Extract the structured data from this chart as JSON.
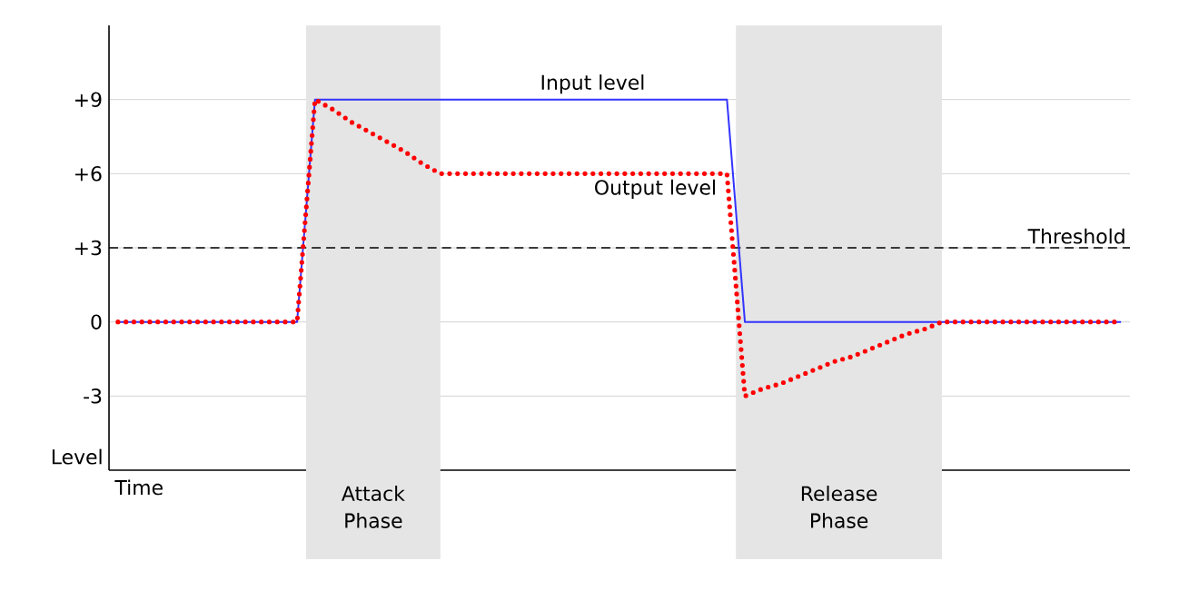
{
  "chart_data": {
    "type": "line",
    "xlabel": "Time",
    "ylabel": "Level",
    "categories": [
      null,
      null,
      null,
      null,
      null,
      null,
      null,
      null,
      null,
      null,
      null,
      null,
      null,
      null,
      null,
      null,
      null,
      null,
      null,
      null,
      null,
      null,
      null,
      null,
      null,
      null,
      null,
      null,
      null,
      null,
      null,
      null,
      null,
      null,
      null,
      null,
      null,
      null,
      null,
      null,
      null,
      null,
      null,
      null,
      null,
      null,
      null,
      null,
      null,
      null,
      null,
      null,
      null,
      null,
      null,
      null,
      null
    ],
    "ylim": [
      -6,
      12
    ],
    "yticks": [
      {
        "value": 9,
        "label": "+9"
      },
      {
        "value": 6,
        "label": "+6"
      },
      {
        "value": 3,
        "label": "+3"
      },
      {
        "value": 0,
        "label": "0"
      },
      {
        "value": -3,
        "label": "-3"
      }
    ],
    "tick_labels": "y",
    "grid": "y",
    "legend": false,
    "series": [
      {
        "name": "Input level",
        "color": "#3333ff",
        "line_style": "solid",
        "values": [
          0,
          0,
          0,
          0,
          0,
          0,
          0,
          0,
          0,
          0,
          0,
          9,
          9,
          9,
          9,
          9,
          9,
          9,
          9,
          9,
          9,
          9,
          9,
          9,
          9,
          9,
          9,
          9,
          9,
          9,
          9,
          9,
          9,
          9,
          9,
          0,
          0,
          0,
          0,
          0,
          0,
          0,
          0,
          0,
          0,
          0,
          0,
          0,
          0,
          0,
          0,
          0,
          0,
          0,
          0,
          0,
          0
        ]
      },
      {
        "name": "Output level",
        "color": "#ff0000",
        "line_style": "dotted",
        "values": [
          0,
          0,
          0,
          0,
          0,
          0,
          0,
          0,
          0,
          0,
          0,
          9,
          8.6,
          8.1,
          7.7,
          7.3,
          6.9,
          6.4,
          6,
          6,
          6,
          6,
          6,
          6,
          6,
          6,
          6,
          6,
          6,
          6,
          6,
          6,
          6,
          6,
          6,
          -3,
          -2.7,
          -2.5,
          -2.2,
          -1.9,
          -1.6,
          -1.4,
          -1.1,
          -0.8,
          -0.5,
          -0.3,
          0,
          0,
          0,
          0,
          0,
          0,
          0,
          0,
          0,
          0,
          0
        ]
      }
    ],
    "ref_lines": [
      {
        "axis": "y",
        "value": 3,
        "label": "Threshold",
        "color": "#000000",
        "line_style": "dashed"
      }
    ],
    "annotations": [
      "Attack Phase",
      "Release Phase"
    ]
  }
}
